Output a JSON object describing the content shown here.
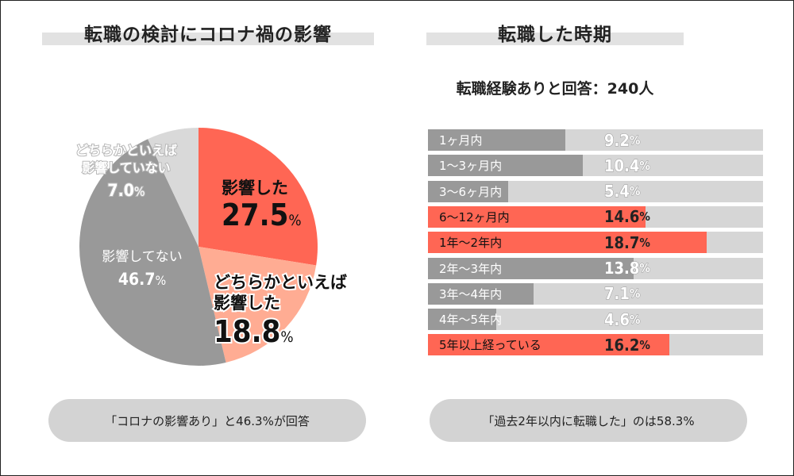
{
  "left_title": "転職の検討にコロナ禍の影響",
  "right_title": "転職した時期",
  "right_subtitle": "転職経験ありと回答：240人",
  "left_note": "「コロナの影響あり」と46.3%が回答",
  "right_note": "「過去2年以内に転職した」のは58.3%",
  "colors": {
    "red": "#ff6654",
    "salmon": "#ffac93",
    "gray": "#999999",
    "light": "#d9d9d9",
    "track": "#d6d6d6"
  },
  "chart_data": [
    {
      "type": "pie",
      "title": "転職の検討にコロナ禍の影響",
      "slices": [
        {
          "label_lines": [
            "影響した"
          ],
          "value": 27.5,
          "value_text": "27.5",
          "color": "#ff6654"
        },
        {
          "label_lines": [
            "どちらかといえば",
            "影響した"
          ],
          "value": 18.8,
          "value_text": "18.8",
          "color": "#ffac93"
        },
        {
          "label_lines": [
            "影響してない"
          ],
          "value": 46.7,
          "value_text": "46.7",
          "color": "#999999"
        },
        {
          "label_lines": [
            "どちらかといえば",
            "影響していない"
          ],
          "value": 7.0,
          "value_text": "7.0",
          "color": "#d9d9d9"
        }
      ]
    },
    {
      "type": "bar",
      "orientation": "horizontal",
      "title": "転職した時期",
      "unit": "%",
      "categories": [
        "1ヶ月内",
        "1〜3ヶ月内",
        "3〜6ヶ月内",
        "6〜12ヶ月内",
        "1年〜2年内",
        "2年〜3年内",
        "3年〜4年内",
        "4年〜5年内",
        "5年以上経っている"
      ],
      "values": [
        9.2,
        10.4,
        5.4,
        14.6,
        18.7,
        13.8,
        7.1,
        4.6,
        16.2
      ],
      "highlight": [
        false,
        false,
        false,
        true,
        true,
        false,
        false,
        false,
        true
      ],
      "xlim": [
        0,
        22.5
      ]
    }
  ]
}
